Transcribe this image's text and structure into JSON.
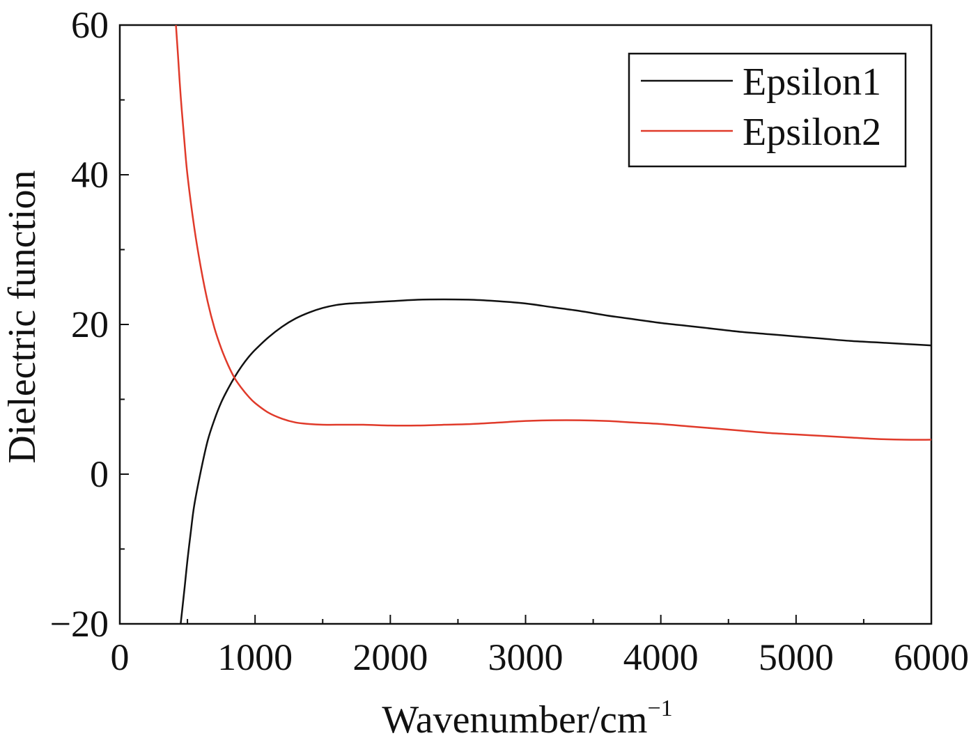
{
  "chart_data": {
    "type": "line",
    "xlabel": "Wavenumber/cm",
    "xlabel_superscript": "−1",
    "ylabel": "Dielectric function",
    "xlim": [
      0,
      6000
    ],
    "ylim": [
      -20,
      60
    ],
    "x_ticks": [
      0,
      1000,
      2000,
      3000,
      4000,
      5000,
      6000
    ],
    "x_tick_labels": [
      "0",
      "1000",
      "2000",
      "3000",
      "4000",
      "5000",
      "6000"
    ],
    "y_ticks": [
      -20,
      0,
      20,
      40,
      60
    ],
    "y_tick_labels": [
      "−20",
      "0",
      "20",
      "40",
      "60"
    ],
    "grid": false,
    "legend_position": "top-right",
    "series": [
      {
        "name": "Epsilon1",
        "color": "#111111",
        "points": [
          [
            450,
            -20
          ],
          [
            480,
            -15
          ],
          [
            500,
            -11.5
          ],
          [
            525,
            -7.7
          ],
          [
            550,
            -4.2
          ],
          [
            600,
            0.5
          ],
          [
            650,
            4.5
          ],
          [
            700,
            7.3
          ],
          [
            750,
            9.6
          ],
          [
            800,
            11.4
          ],
          [
            850,
            13
          ],
          [
            900,
            14.4
          ],
          [
            950,
            15.6
          ],
          [
            1000,
            16.6
          ],
          [
            1100,
            18.3
          ],
          [
            1200,
            19.7
          ],
          [
            1300,
            20.8
          ],
          [
            1400,
            21.6
          ],
          [
            1500,
            22.2
          ],
          [
            1600,
            22.6
          ],
          [
            1700,
            22.8
          ],
          [
            1800,
            22.9
          ],
          [
            2000,
            23.1
          ],
          [
            2200,
            23.3
          ],
          [
            2400,
            23.35
          ],
          [
            2600,
            23.3
          ],
          [
            2800,
            23.1
          ],
          [
            3000,
            22.8
          ],
          [
            3200,
            22.3
          ],
          [
            3400,
            21.8
          ],
          [
            3600,
            21.2
          ],
          [
            3800,
            20.7
          ],
          [
            4000,
            20.2
          ],
          [
            4200,
            19.8
          ],
          [
            4400,
            19.4
          ],
          [
            4600,
            19.0
          ],
          [
            4800,
            18.7
          ],
          [
            5000,
            18.4
          ],
          [
            5200,
            18.1
          ],
          [
            5400,
            17.8
          ],
          [
            5600,
            17.6
          ],
          [
            5800,
            17.4
          ],
          [
            6000,
            17.2
          ]
        ]
      },
      {
        "name": "Epsilon2",
        "color": "#e03a2a",
        "points": [
          [
            415,
            60
          ],
          [
            430,
            56
          ],
          [
            450,
            50.5
          ],
          [
            475,
            45
          ],
          [
            500,
            40
          ],
          [
            550,
            33
          ],
          [
            600,
            27.5
          ],
          [
            650,
            23
          ],
          [
            700,
            19.5
          ],
          [
            750,
            16.8
          ],
          [
            800,
            14.6
          ],
          [
            850,
            12.8
          ],
          [
            900,
            11.5
          ],
          [
            950,
            10.4
          ],
          [
            1000,
            9.5
          ],
          [
            1100,
            8.2
          ],
          [
            1200,
            7.4
          ],
          [
            1300,
            6.9
          ],
          [
            1400,
            6.7
          ],
          [
            1500,
            6.6
          ],
          [
            1600,
            6.6
          ],
          [
            1800,
            6.6
          ],
          [
            2000,
            6.5
          ],
          [
            2200,
            6.5
          ],
          [
            2400,
            6.6
          ],
          [
            2600,
            6.7
          ],
          [
            2800,
            6.9
          ],
          [
            3000,
            7.1
          ],
          [
            3200,
            7.2
          ],
          [
            3400,
            7.2
          ],
          [
            3600,
            7.1
          ],
          [
            3800,
            6.9
          ],
          [
            4000,
            6.7
          ],
          [
            4200,
            6.4
          ],
          [
            4400,
            6.1
          ],
          [
            4600,
            5.8
          ],
          [
            4800,
            5.5
          ],
          [
            5000,
            5.3
          ],
          [
            5200,
            5.1
          ],
          [
            5400,
            4.9
          ],
          [
            5600,
            4.7
          ],
          [
            5800,
            4.6
          ],
          [
            6000,
            4.6
          ]
        ]
      }
    ]
  }
}
